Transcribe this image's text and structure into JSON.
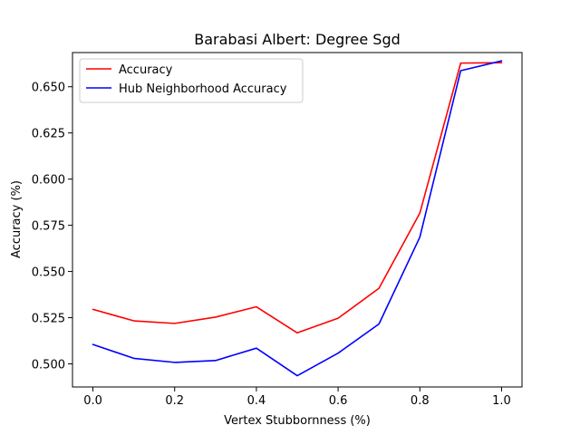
{
  "chart_data": {
    "type": "line",
    "title": "Barabasi Albert: Degree Sgd",
    "xlabel": "Vertex Stubbornness (%)",
    "ylabel": "Accuracy (%)",
    "xlim": [
      -0.05,
      1.05
    ],
    "ylim": [
      0.4875,
      0.6685
    ],
    "x": [
      0.0,
      0.1,
      0.2,
      0.3,
      0.4,
      0.5,
      0.6,
      0.7,
      0.8,
      0.9,
      1.0
    ],
    "xticks": [
      0.0,
      0.2,
      0.4,
      0.6,
      0.8,
      1.0
    ],
    "xtick_labels": [
      "0.0",
      "0.2",
      "0.4",
      "0.6",
      "0.8",
      "1.0"
    ],
    "yticks": [
      0.5,
      0.525,
      0.55,
      0.575,
      0.6,
      0.625,
      0.65
    ],
    "ytick_labels": [
      "0.500",
      "0.525",
      "0.550",
      "0.575",
      "0.600",
      "0.625",
      "0.650"
    ],
    "grid": false,
    "legend": "top-left",
    "series": [
      {
        "name": "Accuracy",
        "color": "#ff0000",
        "values": [
          0.5295,
          0.5233,
          0.5219,
          0.5253,
          0.5309,
          0.5168,
          0.5247,
          0.5409,
          0.5816,
          0.6628,
          0.663
        ]
      },
      {
        "name": "Hub Neighborhood Accuracy",
        "color": "#0000ff",
        "values": [
          0.5105,
          0.503,
          0.5008,
          0.5018,
          0.5085,
          0.4936,
          0.5058,
          0.5216,
          0.5686,
          0.6587,
          0.664
        ]
      }
    ]
  }
}
